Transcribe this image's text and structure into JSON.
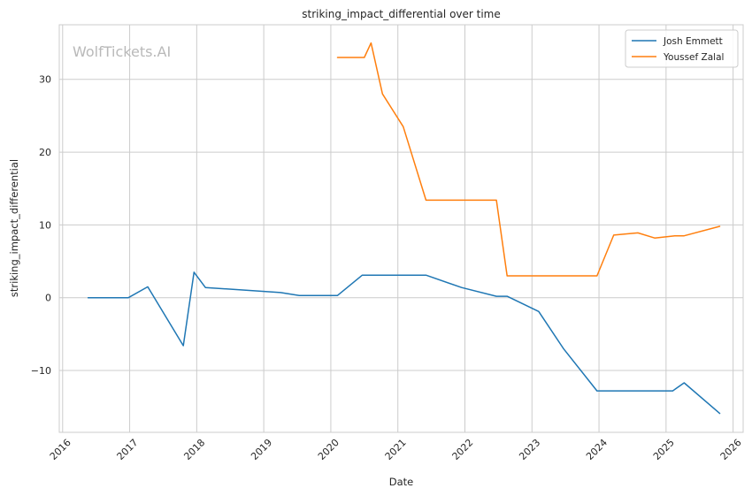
{
  "chart_data": {
    "type": "line",
    "title": "striking_impact_differential over time",
    "xlabel": "Date",
    "ylabel": "striking_impact_differential",
    "watermark": "WolfTickets.AI",
    "xlim": [
      2015.95,
      2026.15
    ],
    "ylim": [
      -18.5,
      37.5
    ],
    "x_ticks": [
      {
        "value": 2016,
        "label": "2016"
      },
      {
        "value": 2017,
        "label": "2017"
      },
      {
        "value": 2018,
        "label": "2018"
      },
      {
        "value": 2019,
        "label": "2019"
      },
      {
        "value": 2020,
        "label": "2020"
      },
      {
        "value": 2021,
        "label": "2021"
      },
      {
        "value": 2022,
        "label": "2022"
      },
      {
        "value": 2023,
        "label": "2023"
      },
      {
        "value": 2024,
        "label": "2024"
      },
      {
        "value": 2025,
        "label": "2025"
      },
      {
        "value": 2026,
        "label": "2026"
      }
    ],
    "y_ticks": [
      {
        "value": -10,
        "label": "−10"
      },
      {
        "value": 0,
        "label": "0"
      },
      {
        "value": 10,
        "label": "10"
      },
      {
        "value": 20,
        "label": "20"
      },
      {
        "value": 30,
        "label": "30"
      }
    ],
    "grid": true,
    "legend_position": "top-right",
    "series": [
      {
        "name": "Josh Emmett",
        "color": "#1f77b4",
        "points": [
          [
            2016.38,
            0.0
          ],
          [
            2016.98,
            0.0
          ],
          [
            2017.27,
            1.5
          ],
          [
            2017.8,
            -6.6
          ],
          [
            2017.96,
            3.5
          ],
          [
            2018.13,
            1.4
          ],
          [
            2019.25,
            0.7
          ],
          [
            2019.53,
            0.3
          ],
          [
            2020.1,
            0.3
          ],
          [
            2020.47,
            3.1
          ],
          [
            2021.42,
            3.1
          ],
          [
            2021.95,
            1.4
          ],
          [
            2022.47,
            0.2
          ],
          [
            2022.63,
            0.2
          ],
          [
            2023.1,
            -1.9
          ],
          [
            2023.47,
            -7.0
          ],
          [
            2023.97,
            -12.8
          ],
          [
            2025.1,
            -12.8
          ],
          [
            2025.27,
            -11.7
          ],
          [
            2025.8,
            -15.9
          ]
        ]
      },
      {
        "name": "Youssef Zalal",
        "color": "#ff7f0e",
        "points": [
          [
            2020.1,
            33.0
          ],
          [
            2020.5,
            33.0
          ],
          [
            2020.6,
            35.0
          ],
          [
            2020.77,
            28.0
          ],
          [
            2021.08,
            23.5
          ],
          [
            2021.42,
            13.4
          ],
          [
            2022.47,
            13.4
          ],
          [
            2022.63,
            3.0
          ],
          [
            2023.97,
            3.0
          ],
          [
            2024.22,
            8.6
          ],
          [
            2024.58,
            8.9
          ],
          [
            2024.83,
            8.2
          ],
          [
            2025.13,
            8.5
          ],
          [
            2025.27,
            8.5
          ],
          [
            2025.8,
            9.8
          ]
        ]
      }
    ]
  }
}
